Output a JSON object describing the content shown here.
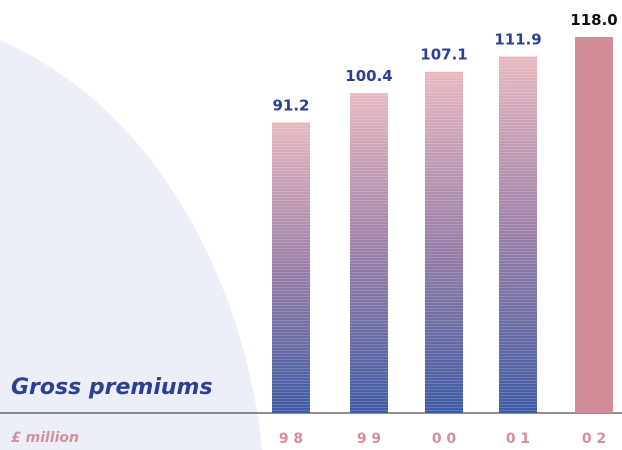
{
  "chart_data": {
    "type": "bar",
    "title": "Gross premiums",
    "unit_label": "£ million",
    "categories": [
      "98",
      "99",
      "00",
      "01",
      "02"
    ],
    "values": [
      91.2,
      100.4,
      107.1,
      111.9,
      118.0
    ],
    "value_labels": [
      "91.2",
      "100.4",
      "107.1",
      "111.9",
      "118.0"
    ],
    "tick_labels": [
      "9 8",
      "9 9",
      "0 0",
      "0 1",
      "0 2"
    ],
    "ylim": [
      0,
      118.0
    ],
    "grid": false,
    "legend": "none",
    "highlight_index": 4
  },
  "colors": {
    "title": "#2b3f93",
    "value_label": "#2b3f93",
    "highlight_label": "#111111",
    "tick_label": "#d4909a",
    "bar_top": "#e8b8bf",
    "bar_mid": "#9a7fa7",
    "bar_bottom": "#3d5aa3",
    "highlight_bar": "#d28c97",
    "axis_line": "#222222",
    "background_shape": "#eceff7"
  }
}
